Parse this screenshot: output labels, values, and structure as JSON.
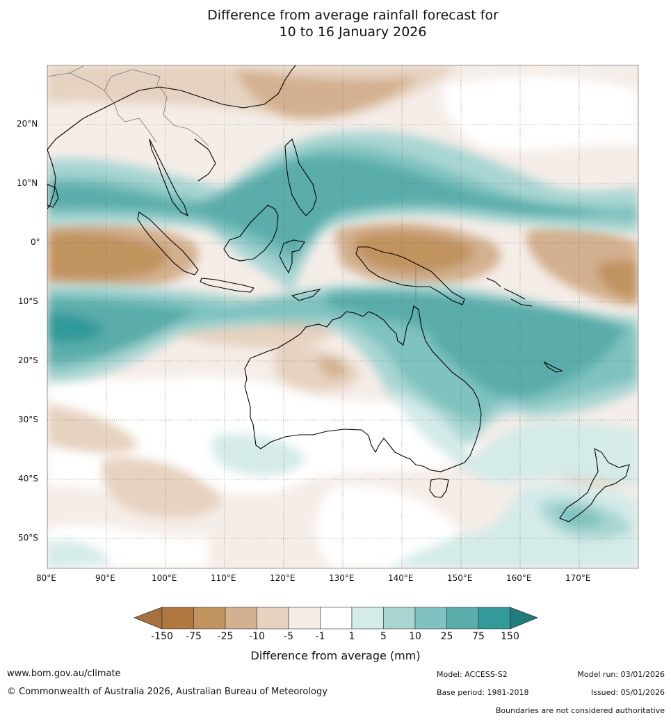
{
  "title": {
    "line1": "Difference from average rainfall forecast for",
    "line2": "10 to 16 January 2026"
  },
  "map": {
    "lon_range": [
      80,
      180
    ],
    "lat_range": [
      -55,
      30
    ],
    "lat_ticks": [
      {
        "value": 20,
        "label": "20°N"
      },
      {
        "value": 10,
        "label": "10°N"
      },
      {
        "value": 0,
        "label": "0°"
      },
      {
        "value": -10,
        "label": "10°S"
      },
      {
        "value": -20,
        "label": "20°S"
      },
      {
        "value": -30,
        "label": "30°S"
      },
      {
        "value": -40,
        "label": "40°S"
      },
      {
        "value": -50,
        "label": "50°S"
      }
    ],
    "lon_ticks": [
      {
        "value": 80,
        "label": "80°E"
      },
      {
        "value": 90,
        "label": "90°E"
      },
      {
        "value": 100,
        "label": "100°E"
      },
      {
        "value": 110,
        "label": "110°E"
      },
      {
        "value": 120,
        "label": "120°E"
      },
      {
        "value": 130,
        "label": "130°E"
      },
      {
        "value": 140,
        "label": "140°E"
      },
      {
        "value": 150,
        "label": "150°E"
      },
      {
        "value": 160,
        "label": "160°E"
      },
      {
        "value": 170,
        "label": "170°E"
      }
    ]
  },
  "legend": {
    "title": "Difference from average (mm)",
    "colors": [
      "#a6713c",
      "#b07740",
      "#c1935f",
      "#d3b08f",
      "#e6d2c0",
      "#f5ede8",
      "#ffffff",
      "#d4ebe9",
      "#a9d6d3",
      "#7fc2bf",
      "#5aadab",
      "#33999a",
      "#207b7b"
    ],
    "labels": [
      "-150",
      "-75",
      "-25",
      "-10",
      "-5",
      "-1",
      "1",
      "5",
      "10",
      "25",
      "75",
      "150"
    ]
  },
  "footer": {
    "website": "www.bom.gov.au/climate",
    "copyright": "© Commonwealth of Australia 2026, Australian Bureau of Meteorology",
    "model": "Model: ACCESS-S2",
    "base_period": "Base period: 1981-2018",
    "model_run": "Model run: 03/01/2026",
    "issued": "Issued: 05/01/2026",
    "boundaries": "Boundaries are not considered authoritative"
  }
}
